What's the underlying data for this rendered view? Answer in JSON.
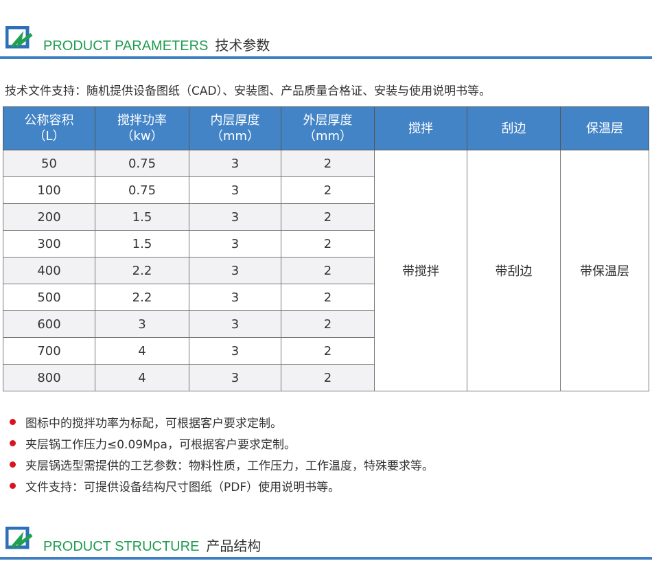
{
  "section1": {
    "title_en": "PRODUCT PARAMETERS",
    "title_cn": "技术参数"
  },
  "support_text": "技术文件支持：随机提供设备图纸（CAD）、安装图、产品质量合格证、安装与使用说明书等。",
  "table": {
    "headers": [
      [
        "公称容积",
        "（L）"
      ],
      [
        "搅拌功率",
        "（kw）"
      ],
      [
        "内层厚度",
        "（mm）"
      ],
      [
        "外层厚度",
        "（mm）"
      ],
      [
        "搅拌",
        ""
      ],
      [
        "刮边",
        ""
      ],
      [
        "保温层",
        ""
      ]
    ],
    "rows": [
      [
        "50",
        "0.75",
        "3",
        "2"
      ],
      [
        "100",
        "0.75",
        "3",
        "2"
      ],
      [
        "200",
        "1.5",
        "3",
        "2"
      ],
      [
        "300",
        "1.5",
        "3",
        "2"
      ],
      [
        "400",
        "2.2",
        "3",
        "2"
      ],
      [
        "500",
        "2.2",
        "3",
        "2"
      ],
      [
        "600",
        "3",
        "3",
        "2"
      ],
      [
        "700",
        "4",
        "3",
        "2"
      ],
      [
        "800",
        "4",
        "3",
        "2"
      ]
    ],
    "merged": [
      "带搅拌",
      "带刮边",
      "带保温层"
    ]
  },
  "notes": [
    "图标中的搅拌功率为标配，可根据客户要求定制。",
    "夹层锅工作压力≤0.09Mpa，可根据客户要求定制。",
    "夹层锅选型需提供的工艺参数：物料性质，工作压力，工作温度，特殊要求等。",
    "文件支持：可提供设备结构尺寸图纸（PDF）使用说明书等。"
  ],
  "section2": {
    "title_en": "PRODUCT STRUCTURE",
    "title_cn": "产品结构"
  },
  "colors": {
    "header_blue": "#4384c7",
    "title_green": "#1f9a4f",
    "bullet_red": "#d8141d"
  }
}
